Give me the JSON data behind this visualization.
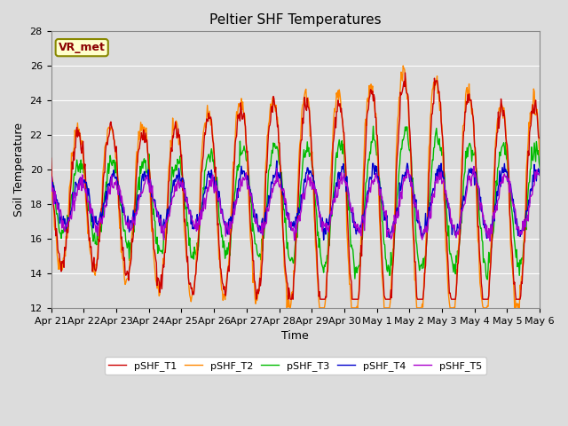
{
  "title": "Peltier SHF Temperatures",
  "xlabel": "Time",
  "ylabel": "Soil Temperature",
  "ylim": [
    12,
    28
  ],
  "xlim": [
    0,
    360
  ],
  "annotation": "VR_met",
  "bg_color": "#dcdcdc",
  "grid_color": "white",
  "series_colors": [
    "#cc0000",
    "#ff8800",
    "#00bb00",
    "#0000cc",
    "#aa00cc"
  ],
  "series_names": [
    "pSHF_T1",
    "pSHF_T2",
    "pSHF_T3",
    "pSHF_T4",
    "pSHF_T5"
  ],
  "xtick_labels": [
    "Apr 21",
    "Apr 22",
    "Apr 23",
    "Apr 24",
    "Apr 25",
    "Apr 26",
    "Apr 27",
    "Apr 28",
    "Apr 29",
    "Apr 30",
    "May 1",
    "May 2",
    "May 3",
    "May 4",
    "May 5",
    "May 6"
  ],
  "xtick_positions": [
    0,
    24,
    48,
    72,
    96,
    120,
    144,
    168,
    192,
    216,
    240,
    264,
    288,
    312,
    336,
    360
  ],
  "ytick_positions": [
    12,
    14,
    16,
    18,
    20,
    22,
    24,
    26,
    28
  ],
  "figsize": [
    6.4,
    4.8
  ],
  "dpi": 100,
  "linewidth": 1.0,
  "title_fontsize": 11,
  "axis_fontsize": 9,
  "tick_fontsize": 8,
  "legend_fontsize": 8
}
